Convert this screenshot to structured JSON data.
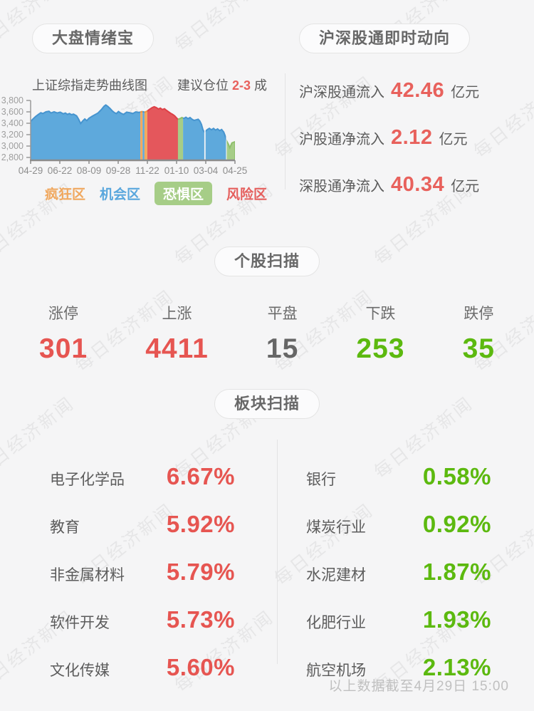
{
  "watermark": {
    "text": "每日经济新闻"
  },
  "sentiment_panel": {
    "title": "大盘情绪宝",
    "chart_title": "上证综指走势曲线图",
    "position_prefix": "建议仓位",
    "position_value": "2-3",
    "position_suffix": "成"
  },
  "flows_panel": {
    "title": "沪深股通即时动向",
    "rows": [
      {
        "label": "沪深股通流入",
        "value": "42.46",
        "unit": "亿元"
      },
      {
        "label": "沪股通净流入",
        "value": "2.12",
        "unit": "亿元"
      },
      {
        "label": "深股通净流入",
        "value": "40.34",
        "unit": "亿元"
      }
    ]
  },
  "stock_scan": {
    "title": "个股扫描",
    "stats": [
      {
        "label": "涨停",
        "value": "301",
        "color": "red"
      },
      {
        "label": "上涨",
        "value": "4411",
        "color": "red"
      },
      {
        "label": "平盘",
        "value": "15",
        "color": "gray"
      },
      {
        "label": "下跌",
        "value": "253",
        "color": "green"
      },
      {
        "label": "跌停",
        "value": "35",
        "color": "green"
      }
    ]
  },
  "sector_scan": {
    "title": "板块扫描",
    "left": [
      {
        "label": "电子化学品",
        "value": "6.67%",
        "color": "red"
      },
      {
        "label": "教育",
        "value": "5.92%",
        "color": "red"
      },
      {
        "label": "非金属材料",
        "value": "5.79%",
        "color": "red"
      },
      {
        "label": "软件开发",
        "value": "5.73%",
        "color": "red"
      },
      {
        "label": "文化传媒",
        "value": "5.60%",
        "color": "red"
      }
    ],
    "right": [
      {
        "label": "银行",
        "value": "0.58%",
        "color": "green"
      },
      {
        "label": "煤炭行业",
        "value": "0.92%",
        "color": "green"
      },
      {
        "label": "水泥建材",
        "value": "1.87%",
        "color": "green"
      },
      {
        "label": "化肥行业",
        "value": "1.93%",
        "color": "green"
      },
      {
        "label": "航空机场",
        "value": "2.13%",
        "color": "green"
      }
    ]
  },
  "footer": {
    "note": "以上数据截至4月29日 15:00"
  },
  "colors": {
    "up_red": "#e65551",
    "down_green": "#5cb90f",
    "neutral_gray": "#666666",
    "accent_red": "#e8605c"
  },
  "chart_data": {
    "type": "area",
    "title": "上证综指走势曲线图",
    "ylim": [
      2750,
      3800
    ],
    "grid": false,
    "yticks": [
      {
        "label": "3,800",
        "value": 3800
      },
      {
        "label": "3,600",
        "value": 3600
      },
      {
        "label": "3,400",
        "value": 3400
      },
      {
        "label": "3,200",
        "value": 3200
      },
      {
        "label": "3,000",
        "value": 3000
      },
      {
        "label": "2,800",
        "value": 2800
      }
    ],
    "xticks": [
      "04-29",
      "06-22",
      "08-09",
      "09-28",
      "11-22",
      "01-10",
      "03-04",
      "04-25"
    ],
    "series": [
      {
        "name": "上证综指",
        "points": [
          [
            0,
            3430
          ],
          [
            0.01,
            3470
          ],
          [
            0.025,
            3520
          ],
          [
            0.04,
            3560
          ],
          [
            0.05,
            3585
          ],
          [
            0.06,
            3570
          ],
          [
            0.075,
            3600
          ],
          [
            0.09,
            3610
          ],
          [
            0.1,
            3580
          ],
          [
            0.115,
            3600
          ],
          [
            0.13,
            3580
          ],
          [
            0.145,
            3595
          ],
          [
            0.16,
            3565
          ],
          [
            0.17,
            3580
          ],
          [
            0.18,
            3555
          ],
          [
            0.19,
            3570
          ],
          [
            0.2,
            3550
          ],
          [
            0.21,
            3560
          ],
          [
            0.225,
            3530
          ],
          [
            0.235,
            3470
          ],
          [
            0.245,
            3395
          ],
          [
            0.255,
            3440
          ],
          [
            0.265,
            3475
          ],
          [
            0.275,
            3445
          ],
          [
            0.285,
            3485
          ],
          [
            0.3,
            3520
          ],
          [
            0.315,
            3550
          ],
          [
            0.33,
            3580
          ],
          [
            0.345,
            3635
          ],
          [
            0.36,
            3700
          ],
          [
            0.368,
            3720
          ],
          [
            0.378,
            3695
          ],
          [
            0.39,
            3655
          ],
          [
            0.4,
            3615
          ],
          [
            0.41,
            3585
          ],
          [
            0.42,
            3570
          ],
          [
            0.43,
            3605
          ],
          [
            0.44,
            3580
          ],
          [
            0.455,
            3555
          ],
          [
            0.47,
            3595
          ],
          [
            0.485,
            3585
          ],
          [
            0.5,
            3570
          ],
          [
            0.515,
            3600
          ],
          [
            0.53,
            3590
          ],
          [
            0.545,
            3605
          ],
          [
            0.56,
            3595
          ],
          [
            0.571,
            3615
          ],
          [
            0.58,
            3640
          ],
          [
            0.595,
            3675
          ],
          [
            0.605,
            3690
          ],
          [
            0.615,
            3675
          ],
          [
            0.625,
            3650
          ],
          [
            0.635,
            3665
          ],
          [
            0.645,
            3640
          ],
          [
            0.655,
            3655
          ],
          [
            0.665,
            3625
          ],
          [
            0.675,
            3600
          ],
          [
            0.685,
            3575
          ],
          [
            0.695,
            3555
          ],
          [
            0.705,
            3530
          ],
          [
            0.715,
            3490
          ],
          [
            0.721,
            3470
          ],
          [
            0.73,
            3480
          ],
          [
            0.74,
            3500
          ],
          [
            0.75,
            3485
          ],
          [
            0.76,
            3505
          ],
          [
            0.77,
            3480
          ],
          [
            0.78,
            3500
          ],
          [
            0.79,
            3470
          ],
          [
            0.8,
            3450
          ],
          [
            0.81,
            3460
          ],
          [
            0.82,
            3470
          ],
          [
            0.828,
            3440
          ],
          [
            0.836,
            3380
          ],
          [
            0.844,
            3280
          ],
          [
            0.85,
            3250
          ],
          [
            0.856,
            3260
          ],
          [
            0.865,
            3290
          ],
          [
            0.875,
            3310
          ],
          [
            0.885,
            3285
          ],
          [
            0.895,
            3310
          ],
          [
            0.905,
            3280
          ],
          [
            0.915,
            3300
          ],
          [
            0.925,
            3270
          ],
          [
            0.935,
            3290
          ],
          [
            0.945,
            3245
          ],
          [
            0.952,
            3180
          ],
          [
            0.958,
            3100
          ],
          [
            0.968,
            3030
          ],
          [
            0.975,
            2970
          ],
          [
            0.985,
            3055
          ],
          [
            1,
            3075
          ]
        ]
      }
    ],
    "zones": [
      {
        "from": 0.0,
        "to": 0.537,
        "color": "blue"
      },
      {
        "from": 0.537,
        "to": 0.548,
        "color": "orange"
      },
      {
        "from": 0.548,
        "to": 0.557,
        "color": "blue"
      },
      {
        "from": 0.557,
        "to": 0.571,
        "color": "orange"
      },
      {
        "from": 0.571,
        "to": 0.721,
        "color": "red"
      },
      {
        "from": 0.721,
        "to": 0.746,
        "color": "green"
      },
      {
        "from": 0.746,
        "to": 0.85,
        "color": "blue"
      },
      {
        "from": 0.856,
        "to": 0.956,
        "color": "blue"
      },
      {
        "from": 0.96,
        "to": 1.0,
        "color": "green"
      }
    ],
    "zone_colors": {
      "blue": {
        "fill": "#5ea9dc",
        "stroke": "#4694cf"
      },
      "orange": {
        "fill": "#f3a95e",
        "stroke": "#eb9440"
      },
      "red": {
        "fill": "#e4575c",
        "stroke": "#dd4046"
      },
      "green": {
        "fill": "#a6cd87",
        "stroke": "#8fbf6b"
      }
    },
    "legend": [
      {
        "label": "疯狂区",
        "color": "orange",
        "active": false
      },
      {
        "label": "机会区",
        "color": "blue",
        "active": false
      },
      {
        "label": "恐惧区",
        "color": "green",
        "active": true
      },
      {
        "label": "风险区",
        "color": "red",
        "active": false
      }
    ],
    "legend_position": "bottom"
  }
}
